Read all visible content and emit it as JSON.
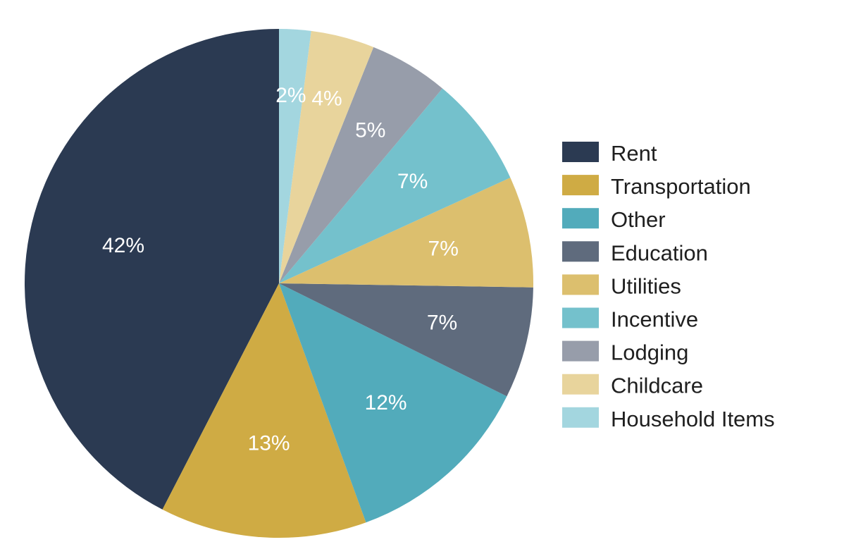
{
  "chart_data": {
    "type": "pie",
    "start": "12 o'clock",
    "direction": "counter-clockwise",
    "legend_position": "right",
    "slices": [
      {
        "name": "Rent",
        "value": 42,
        "label": "42%",
        "color": "#2b3a52"
      },
      {
        "name": "Transportation",
        "value": 13,
        "label": "13%",
        "color": "#cfab44"
      },
      {
        "name": "Other",
        "value": 12,
        "label": "12%",
        "color": "#52abbb"
      },
      {
        "name": "Education",
        "value": 7,
        "label": "7%",
        "color": "#5f6b7d"
      },
      {
        "name": "Utilities",
        "value": 7,
        "label": "7%",
        "color": "#dcbf6e"
      },
      {
        "name": "Incentive",
        "value": 7,
        "label": "7%",
        "color": "#74c1cc"
      },
      {
        "name": "Lodging",
        "value": 5,
        "label": "5%",
        "color": "#979daa"
      },
      {
        "name": "Childcare",
        "value": 4,
        "label": "4%",
        "color": "#e8d49c"
      },
      {
        "name": "Household Items",
        "value": 2,
        "label": "2%",
        "color": "#a3d6df"
      }
    ]
  }
}
